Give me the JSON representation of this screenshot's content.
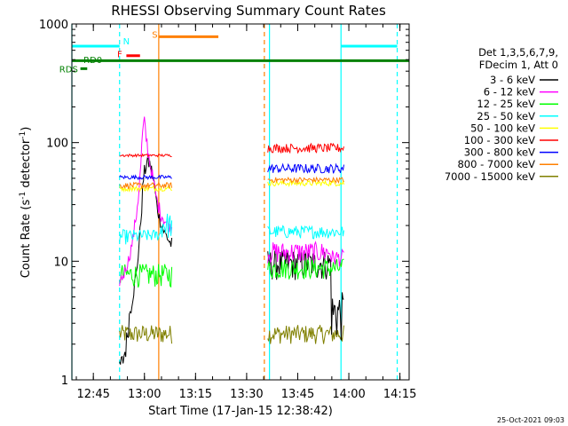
{
  "chart_data": {
    "type": "line",
    "title": "RHESSI Observing Summary Count Rates",
    "xlabel": "Start Time (17-Jan-15 12:38:42)",
    "ylabel_parts": {
      "pre": "Count Rate (s",
      "sup": "-1",
      "post": " detector",
      "sup2": "-1",
      "close": ")"
    },
    "yscale": "log",
    "ylim": [
      1,
      1000
    ],
    "xlim_minutes": [
      0,
      99
    ],
    "x_ticks": [
      {
        "m": 6.3,
        "label": "12:45"
      },
      {
        "m": 21.3,
        "label": "13:00"
      },
      {
        "m": 36.3,
        "label": "13:15"
      },
      {
        "m": 51.3,
        "label": "13:30"
      },
      {
        "m": 66.3,
        "label": "13:45"
      },
      {
        "m": 81.3,
        "label": "14:00"
      },
      {
        "m": 96.3,
        "label": "14:15"
      }
    ],
    "y_ticks": [
      {
        "v": 1,
        "label": "1"
      },
      {
        "v": 10,
        "label": "10"
      },
      {
        "v": 100,
        "label": "100"
      },
      {
        "v": 1000,
        "label": "1000"
      }
    ],
    "legend": {
      "header": [
        "Det 1,3,5,6,7,9,",
        "FDecim 1, Att 0"
      ],
      "position": "right"
    },
    "segments": [
      [
        14.0,
        29.5
      ],
      [
        57.5,
        80.0
      ]
    ],
    "series": [
      {
        "name": "3 - 6 keV",
        "color": "#000000",
        "a_min": [
          [
            14,
            1
          ],
          [
            15,
            1.2
          ],
          [
            16,
            1.5
          ],
          [
            17,
            3
          ],
          [
            19,
            7
          ],
          [
            20,
            15
          ],
          [
            21,
            40
          ],
          [
            22,
            60
          ],
          [
            23,
            55
          ],
          [
            24,
            40
          ],
          [
            25,
            25
          ],
          [
            26,
            19
          ],
          [
            27,
            16
          ],
          [
            29,
            12
          ]
        ],
        "a_max": [
          [
            14,
            1.6
          ],
          [
            15,
            1.7
          ],
          [
            16,
            2.5
          ],
          [
            17,
            4.5
          ],
          [
            19,
            9
          ],
          [
            20,
            20
          ],
          [
            21,
            60
          ],
          [
            22,
            80
          ],
          [
            23,
            75
          ],
          [
            24,
            55
          ],
          [
            25,
            32
          ],
          [
            26,
            24
          ],
          [
            27,
            20
          ],
          [
            29,
            16
          ]
        ],
        "b_min": 6.8,
        "b_max": 12.5,
        "b_end": [
          2.0,
          5.5
        ]
      },
      {
        "name": "6 - 12 keV",
        "color": "#ff00ff",
        "a_min": [
          [
            14,
            6
          ],
          [
            15,
            6.5
          ],
          [
            16,
            8
          ],
          [
            17,
            10
          ],
          [
            18,
            14
          ],
          [
            19,
            22
          ],
          [
            20,
            40
          ],
          [
            20.7,
            90
          ],
          [
            21.2,
            130
          ],
          [
            22,
            80
          ],
          [
            23,
            55
          ],
          [
            24,
            40
          ],
          [
            25,
            28
          ],
          [
            26,
            22
          ],
          [
            27,
            20
          ],
          [
            29,
            17
          ]
        ],
        "a_max": [
          [
            14,
            7.5
          ],
          [
            15,
            8.5
          ],
          [
            16,
            10
          ],
          [
            17,
            12.5
          ],
          [
            18,
            18
          ],
          [
            19,
            30
          ],
          [
            20,
            60
          ],
          [
            20.7,
            135
          ],
          [
            21.2,
            175
          ],
          [
            22,
            120
          ],
          [
            23,
            75
          ],
          [
            24,
            52
          ],
          [
            25,
            36
          ],
          [
            26,
            30
          ],
          [
            27,
            25
          ],
          [
            29,
            21
          ]
        ],
        "b_min": 9.5,
        "b_max": 14.5,
        "b_end": [
          9,
          12.5
        ]
      },
      {
        "name": "12 - 25 keV",
        "color": "#00ff00",
        "a_min": 6,
        "a_max": 9.5,
        "b_min": 7,
        "b_max": 10.5
      },
      {
        "name": "25 - 50 keV",
        "color": "#00ffff",
        "a_min": 15.5,
        "a_max": 18.5,
        "a_rise": 2,
        "b_min": 15.5,
        "b_max": 20
      },
      {
        "name": "50 - 100 keV",
        "color": "#ffff00",
        "a_min": 39,
        "a_max": 43,
        "b_min": 43,
        "b_max": 48
      },
      {
        "name": "100 - 300 keV",
        "color": "#ff0000",
        "a_min": 76,
        "a_max": 80,
        "b_min": 82,
        "b_max": 98
      },
      {
        "name": "300 - 800 keV",
        "color": "#0000ff",
        "a_min": 49,
        "a_max": 53,
        "b_min": 55,
        "b_max": 66
      },
      {
        "name": "800 - 7000 keV",
        "color": "#ff8000",
        "a_min": 41,
        "a_max": 46,
        "b_min": 46,
        "b_max": 51
      },
      {
        "name": "7000 - 15000 keV",
        "color": "#808000",
        "a_min": 2.0,
        "a_max": 2.9,
        "b_min": 2.0,
        "b_max": 2.9
      }
    ],
    "flags": {
      "vlines": [
        {
          "m": 0.0,
          "color": "#00ffff",
          "style": "solid"
        },
        {
          "m": 14.0,
          "color": "#00ffff",
          "style": "dashed"
        },
        {
          "m": 25.5,
          "color": "#ff8000",
          "style": "solid"
        },
        {
          "m": 56.5,
          "color": "#ff8000",
          "style": "dashed"
        },
        {
          "m": 58.0,
          "color": "#00ffff",
          "style": "solid"
        },
        {
          "m": 79.0,
          "color": "#00ffff",
          "style": "solid"
        },
        {
          "m": 95.5,
          "color": "#00ffff",
          "style": "dashed"
        }
      ],
      "bars": [
        {
          "m0": 0.0,
          "m1": 14.0,
          "v": 650,
          "color": "#00ffff",
          "label": "N",
          "label_m": 15,
          "label_v": 720
        },
        {
          "m0": 79.0,
          "m1": 95.5,
          "v": 650,
          "color": "#00ffff",
          "label": "",
          "label_m": 0,
          "label_v": 0
        },
        {
          "m0": 25.5,
          "m1": 43.0,
          "v": 780,
          "color": "#ff8000",
          "label": "S",
          "label_m": 23.5,
          "label_v": 820
        },
        {
          "m0": 16.0,
          "m1": 20.0,
          "v": 540,
          "color": "#ff0000",
          "label": "F",
          "label_m": 13.3,
          "label_v": 560
        },
        {
          "m0": 0.0,
          "m1": 99.0,
          "v": 490,
          "color": "#008000",
          "label": "RD0",
          "label_m": 3.4,
          "label_v": 500
        },
        {
          "m0": 2.5,
          "m1": 4.5,
          "v": 420,
          "color": "#008000",
          "label": "RDS",
          "label_m": -3.7,
          "label_v": 420
        }
      ]
    }
  },
  "timestamp": "25-Oct-2021 09:03"
}
